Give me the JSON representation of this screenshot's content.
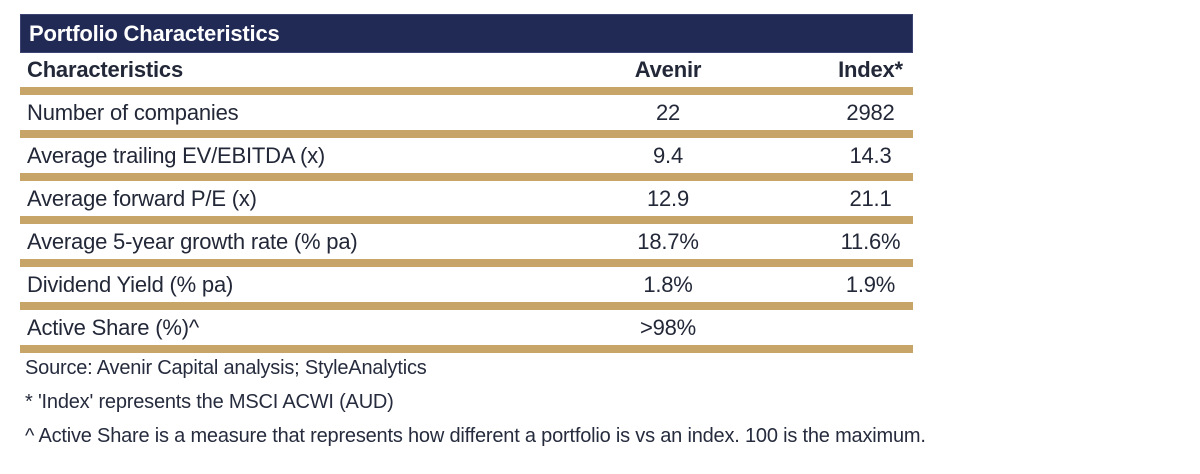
{
  "colors": {
    "navy": "#212A55",
    "gold": "#C7A468",
    "text": "#232838",
    "title_text": "#ffffff"
  },
  "table": {
    "title": "Portfolio Characteristics",
    "columns": [
      "Characteristics",
      "Avenir",
      "Index*"
    ],
    "rows": [
      {
        "label": "Number of companies",
        "avenir": "22",
        "index": "2982"
      },
      {
        "label": "Average trailing EV/EBITDA (x)",
        "avenir": "9.4",
        "index": "14.3"
      },
      {
        "label": "Average forward P/E (x)",
        "avenir": "12.9",
        "index": "21.1"
      },
      {
        "label": "Average 5-year growth rate (% pa)",
        "avenir": "18.7%",
        "index": "11.6%"
      },
      {
        "label": "Dividend Yield (% pa)",
        "avenir": "1.8%",
        "index": "1.9%"
      },
      {
        "label": "Active Share (%)^",
        "avenir": ">98%",
        "index": ""
      }
    ]
  },
  "footnotes": [
    "Source: Avenir Capital analysis; StyleAnalytics",
    "* 'Index' represents the MSCI ACWI (AUD)",
    "^ Active Share is a measure that represents how different a portfolio is vs an index. 100 is the maximum."
  ],
  "chart_data": {
    "type": "table",
    "title": "Portfolio Characteristics",
    "columns": [
      "Characteristics",
      "Avenir",
      "Index*"
    ],
    "rows": [
      [
        "Number of companies",
        "22",
        "2982"
      ],
      [
        "Average trailing EV/EBITDA (x)",
        "9.4",
        "14.3"
      ],
      [
        "Average forward P/E (x)",
        "12.9",
        "21.1"
      ],
      [
        "Average 5-year growth rate (% pa)",
        "18.7%",
        "11.6%"
      ],
      [
        "Dividend Yield (% pa)",
        "1.8%",
        "1.9%"
      ],
      [
        "Active Share (%)^",
        ">98%",
        ""
      ]
    ],
    "notes": [
      "Source: Avenir Capital analysis; StyleAnalytics",
      "* 'Index' represents the MSCI ACWI (AUD)",
      "^ Active Share is a measure that represents how different a portfolio is vs an index. 100 is the maximum."
    ]
  }
}
